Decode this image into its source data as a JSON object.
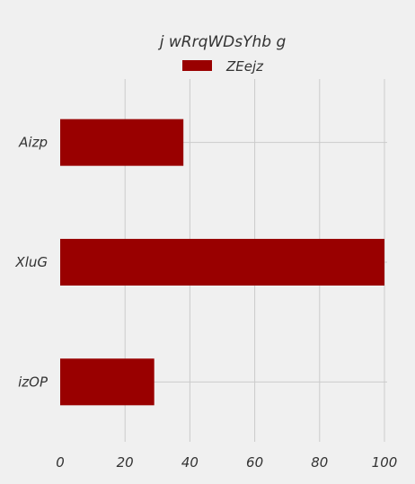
{
  "chart_data": {
    "type": "bar",
    "orientation": "horizontal",
    "title": "j wRrqWDsYhb g",
    "categories": [
      "Aizp",
      "XluG",
      "izOP"
    ],
    "series": [
      {
        "name": "ZEejz",
        "values": [
          38,
          100,
          29
        ],
        "color": "#990000"
      }
    ],
    "xlim": [
      0,
      100
    ],
    "xticks": [
      0,
      20,
      40,
      60,
      80,
      100
    ],
    "grid": true,
    "legend": "top-center"
  }
}
